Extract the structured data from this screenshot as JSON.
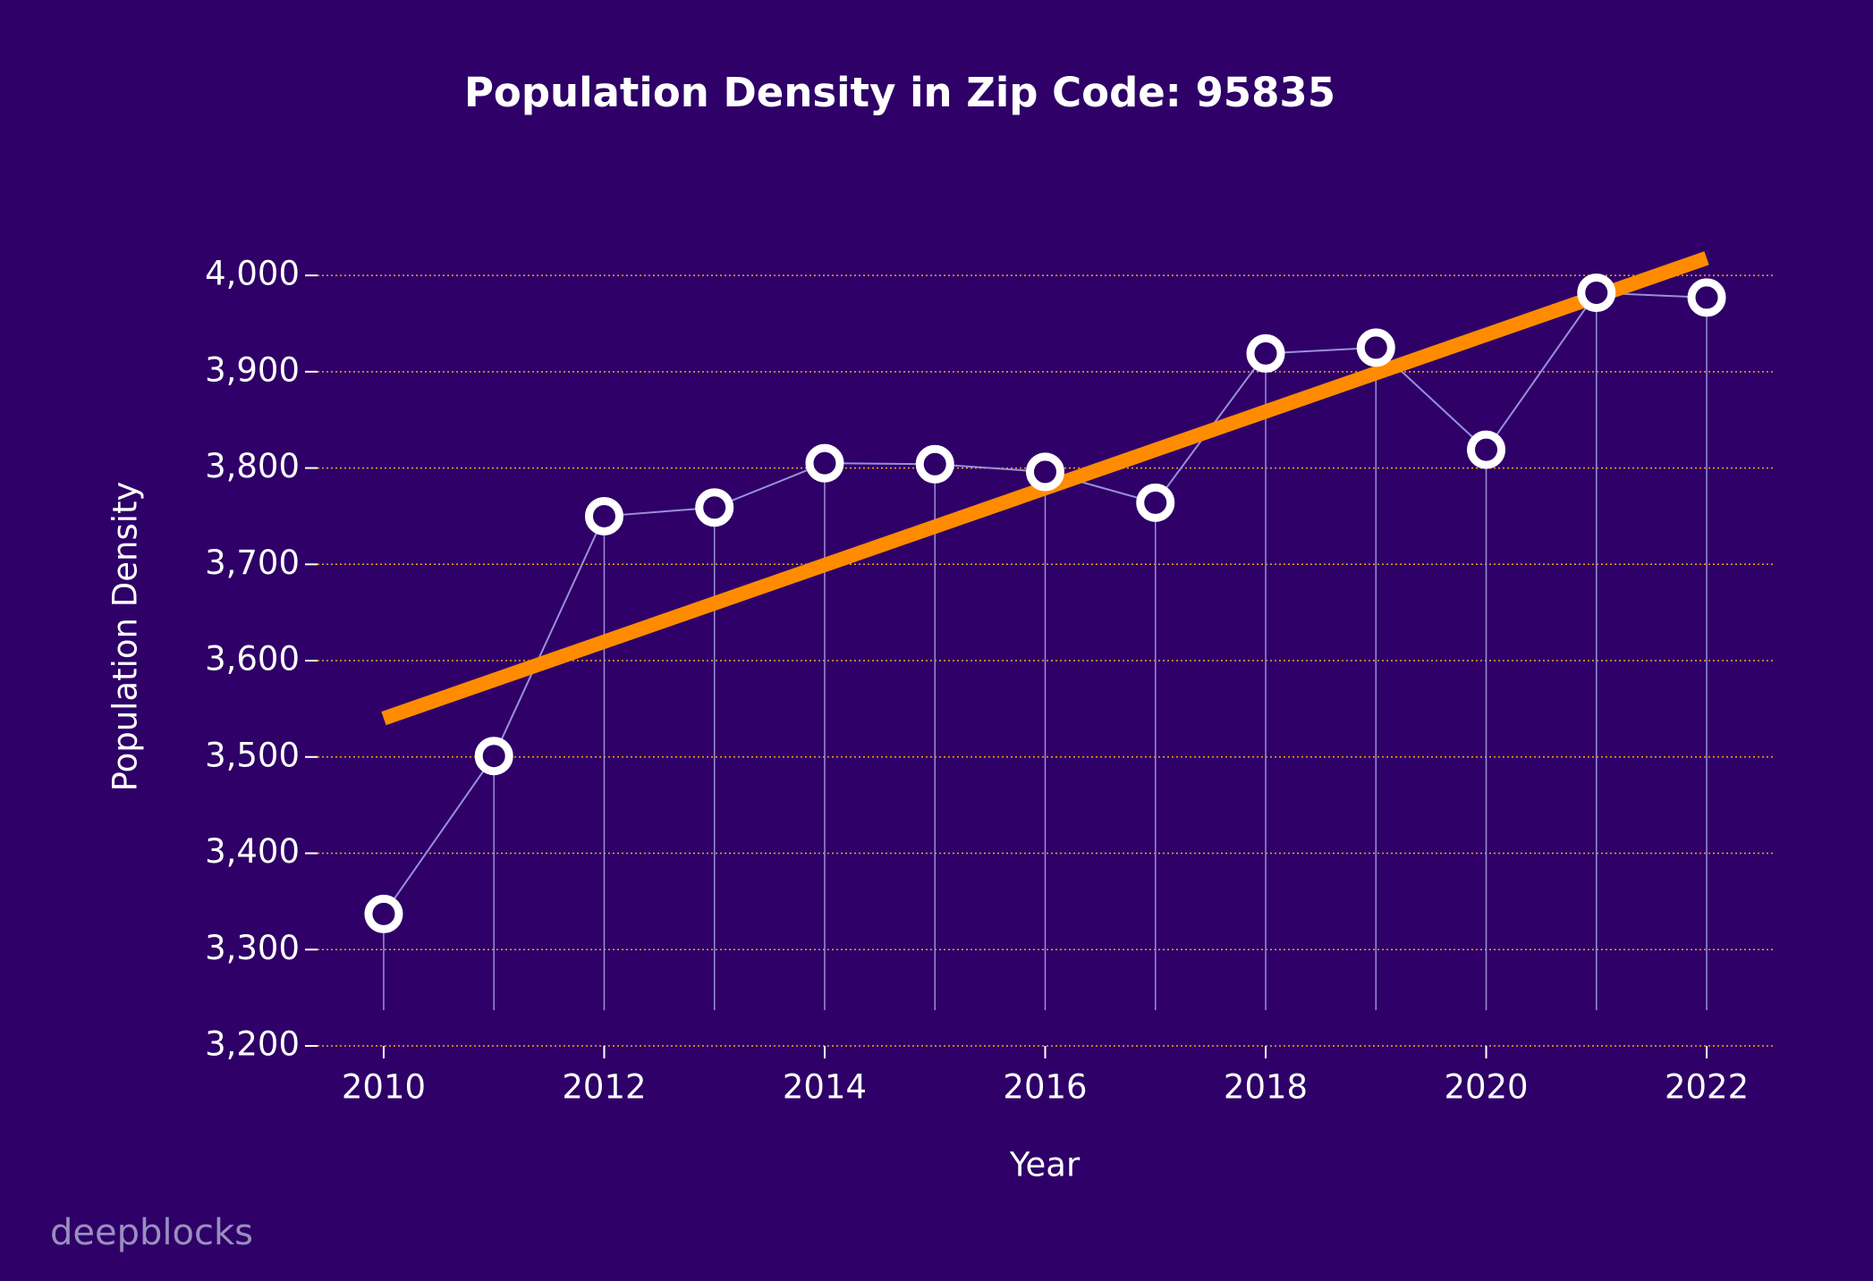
{
  "chart_data": {
    "type": "line",
    "title": "Population Density in Zip Code: 95835",
    "x_label": "Year",
    "y_label": "Population Density",
    "watermark": "deepblocks",
    "x": [
      2010,
      2011,
      2012,
      2013,
      2014,
      2015,
      2016,
      2017,
      2018,
      2019,
      2020,
      2021,
      2022
    ],
    "series": [
      {
        "color": "#9b8fd9",
        "values": [
          3337,
          3501,
          3750,
          3759,
          3805,
          3804,
          3796,
          3764,
          3919,
          3925,
          3819,
          3982,
          3977
        ]
      }
    ],
    "trend": {
      "color": "#ff8c00",
      "x": [
        2010,
        2022
      ],
      "values": [
        3540,
        4018
      ]
    },
    "xlim": [
      2009.4,
      2022.6
    ],
    "xticks": [
      2010,
      2012,
      2014,
      2016,
      2018,
      2020,
      2022
    ],
    "ylim": [
      3200,
      4040
    ],
    "yticks": [
      {
        "value": 3200,
        "label": "3,200"
      },
      {
        "value": 3300,
        "label": "3,300"
      },
      {
        "value": 3400,
        "label": "3,400"
      },
      {
        "value": 3500,
        "label": "3,500"
      },
      {
        "value": 3600,
        "label": "3,600"
      },
      {
        "value": 3700,
        "label": "3,700"
      },
      {
        "value": 3800,
        "label": "3,800"
      },
      {
        "value": 3900,
        "label": "3,900"
      },
      {
        "value": 4000,
        "label": "4,000"
      }
    ],
    "grid": true,
    "grid_color": "#ff9f1c"
  }
}
